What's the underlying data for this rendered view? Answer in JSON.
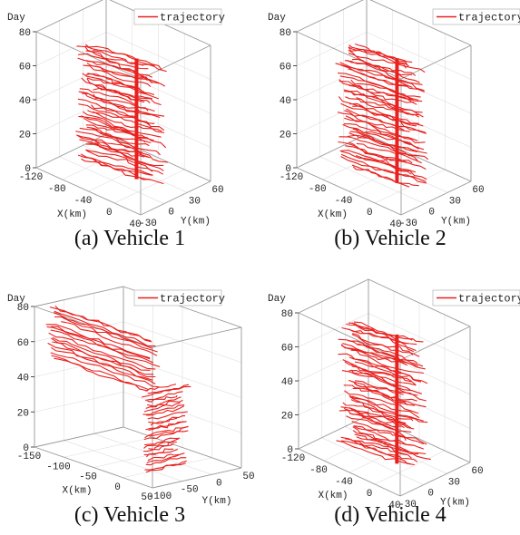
{
  "colors": {
    "trajectory": "#e8201e",
    "box": "#9a9a9a",
    "grid": "#dedede",
    "text": "#222222"
  },
  "chart_data": [
    {
      "type": "line3d",
      "caption": "(a) Vehicle 1",
      "zlabel": "Day",
      "xlabel": "X(km)",
      "ylabel": "Y(km)",
      "legend": "trajectory",
      "legend_position": "top-right",
      "xlim": [
        -120,
        40
      ],
      "ylim": [
        -30,
        60
      ],
      "zlim": [
        0,
        80
      ],
      "xticks": [
        "-120",
        "-80",
        "-40",
        "0",
        "40"
      ],
      "yticks": [
        "-30",
        "0",
        "30",
        "60"
      ],
      "zticks": [
        "0",
        "20",
        "40",
        "60",
        "80"
      ],
      "trajectories": {
        "day_range": [
          5,
          75
        ],
        "count": 50,
        "x_range": [
          -90,
          30
        ],
        "y_anchor": 5
      }
    },
    {
      "type": "line3d",
      "caption": "(b) Vehicle 2",
      "zlabel": "Day",
      "xlabel": "X(km)",
      "ylabel": "Y(km)",
      "legend": "trajectory",
      "legend_position": "top-right",
      "xlim": [
        -120,
        40
      ],
      "ylim": [
        -30,
        60
      ],
      "zlim": [
        0,
        80
      ],
      "xticks": [
        "-120",
        "-80",
        "-40",
        "0",
        "40"
      ],
      "yticks": [
        "-30",
        "0",
        "30",
        "60"
      ],
      "zticks": [
        "0",
        "20",
        "40",
        "60",
        "80"
      ],
      "trajectories": {
        "day_range": [
          3,
          75
        ],
        "count": 52,
        "x_range": [
          -90,
          30
        ],
        "y_anchor": 5
      }
    },
    {
      "type": "line3d",
      "caption": "(c) Vehicle 3",
      "zlabel": "Day",
      "xlabel": "X(km)",
      "ylabel": "Y(km)",
      "legend": "trajectory",
      "legend_position": "top-right",
      "xlim": [
        -150,
        50
      ],
      "ylim": [
        -100,
        50
      ],
      "zlim": [
        0,
        80
      ],
      "xticks": [
        "-150",
        "-100",
        "-50",
        "0",
        "50"
      ],
      "yticks": [
        "-100",
        "-50",
        "0",
        "50"
      ],
      "zticks": [
        "0",
        "20",
        "40",
        "60",
        "80"
      ],
      "trajectories": {
        "day_range": [
          5,
          82
        ],
        "count": 48,
        "x_range": [
          -150,
          50
        ],
        "y_anchor": 0
      }
    },
    {
      "type": "line3d",
      "caption": "(d) Vehicle 4",
      "zlabel": "Day",
      "xlabel": "X(km)",
      "ylabel": "Y(km)",
      "legend": "trajectory",
      "legend_position": "top-right",
      "xlim": [
        -120,
        40
      ],
      "ylim": [
        -30,
        60
      ],
      "zlim": [
        0,
        80
      ],
      "xticks": [
        "-120",
        "-80",
        "-40",
        "0",
        "40"
      ],
      "yticks": [
        "-30",
        "0",
        "30",
        "60"
      ],
      "zticks": [
        "0",
        "20",
        "40",
        "60",
        "80"
      ],
      "trajectories": {
        "day_range": [
          3,
          78
        ],
        "count": 54,
        "x_range": [
          -90,
          30
        ],
        "y_anchor": 5
      }
    }
  ]
}
